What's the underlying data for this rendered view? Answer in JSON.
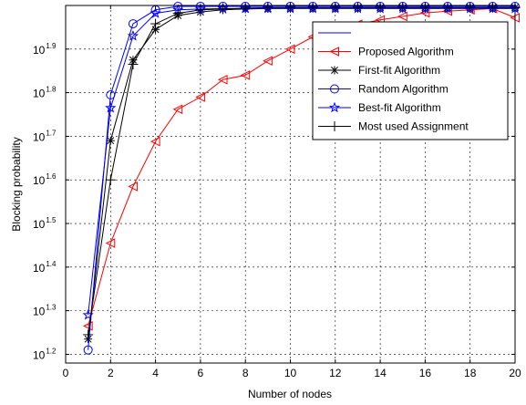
{
  "chart_data": {
    "type": "line",
    "xlabel": "Number of nodes",
    "ylabel": "Blocking probability",
    "xlim": [
      0,
      20
    ],
    "ylim_exponent": [
      1.18,
      2.0
    ],
    "y_scale": "log",
    "y_ticks": [
      {
        "base": "10",
        "exp": "1.2",
        "value": 1.2
      },
      {
        "base": "10",
        "exp": "1.3",
        "value": 1.3
      },
      {
        "base": "10",
        "exp": "1.4",
        "value": 1.4
      },
      {
        "base": "10",
        "exp": "1.5",
        "value": 1.5
      },
      {
        "base": "10",
        "exp": "1.6",
        "value": 1.6
      },
      {
        "base": "10",
        "exp": "1.7",
        "value": 1.7
      },
      {
        "base": "10",
        "exp": "1.8",
        "value": 1.8
      },
      {
        "base": "10",
        "exp": "1.9",
        "value": 1.9
      }
    ],
    "x_ticks": [
      "0",
      "2",
      "4",
      "6",
      "8",
      "10",
      "12",
      "14",
      "16",
      "18",
      "20"
    ],
    "grid": true,
    "legend_position": "top-right",
    "series": [
      {
        "name": "",
        "color": "#0000ff",
        "marker": "none",
        "x": [],
        "y": []
      },
      {
        "name": "Proposed Algorithm",
        "color": "#ff0000",
        "marker": "triangle-left",
        "x": [
          1,
          2,
          3,
          4,
          5,
          6,
          7,
          8,
          9,
          10,
          11,
          12,
          13,
          14,
          15,
          16,
          17,
          18,
          19,
          20
        ],
        "y": [
          1.265,
          1.455,
          1.585,
          1.688,
          1.762,
          1.79,
          1.83,
          1.84,
          1.873,
          1.9,
          1.928,
          1.935,
          1.957,
          1.967,
          1.975,
          1.983,
          1.987,
          1.99,
          1.993,
          1.972
        ]
      },
      {
        "name": "First-fit Algorithm",
        "color": "#000000",
        "marker": "asterisk",
        "x": [
          1,
          2,
          3,
          4,
          5,
          6,
          7,
          8,
          9,
          10,
          11,
          12,
          13,
          14,
          15,
          16,
          17,
          18,
          19,
          20
        ],
        "y": [
          1.235,
          1.69,
          1.875,
          1.945,
          1.977,
          1.985,
          1.99,
          1.992,
          1.993,
          1.994,
          1.994,
          1.994,
          1.995,
          1.995,
          1.995,
          1.995,
          1.995,
          1.995,
          1.995,
          1.995
        ]
      },
      {
        "name": "Random Algorithm",
        "color": "#0000ff",
        "marker": "circle",
        "x": [
          1,
          2,
          3,
          4,
          5,
          6,
          7,
          8,
          9,
          10,
          11,
          12,
          13,
          14,
          15,
          16,
          17,
          18,
          19,
          20
        ],
        "y": [
          1.21,
          1.795,
          1.958,
          1.99,
          1.998,
          1.998,
          1.998,
          1.998,
          1.998,
          1.998,
          1.998,
          1.998,
          1.998,
          1.998,
          1.998,
          1.998,
          1.998,
          1.998,
          1.998,
          1.998
        ]
      },
      {
        "name": "Best-fit Algorithm",
        "color": "#0000ff",
        "marker": "star",
        "x": [
          1,
          2,
          3,
          4,
          5,
          6,
          7,
          8,
          9,
          10,
          11,
          12,
          13,
          14,
          15,
          16,
          17,
          18,
          19,
          20
        ],
        "y": [
          1.29,
          1.765,
          1.93,
          1.982,
          1.99,
          1.992,
          1.993,
          1.993,
          1.993,
          1.993,
          1.993,
          1.993,
          1.993,
          1.993,
          1.993,
          1.993,
          1.993,
          1.993,
          1.993,
          1.993
        ]
      },
      {
        "name": "Most used Assignment",
        "color": "#000000",
        "marker": "plus",
        "x": [
          1,
          2,
          3,
          4,
          5,
          6,
          7,
          8,
          9,
          10,
          11,
          12,
          13,
          14,
          15,
          16,
          17,
          18,
          19,
          20
        ],
        "y": [
          1.245,
          1.6,
          1.865,
          1.958,
          1.982,
          1.99,
          1.992,
          1.994,
          1.995,
          1.995,
          1.995,
          1.995,
          1.995,
          1.995,
          1.995,
          1.995,
          1.995,
          1.995,
          1.995,
          1.995
        ]
      }
    ]
  }
}
